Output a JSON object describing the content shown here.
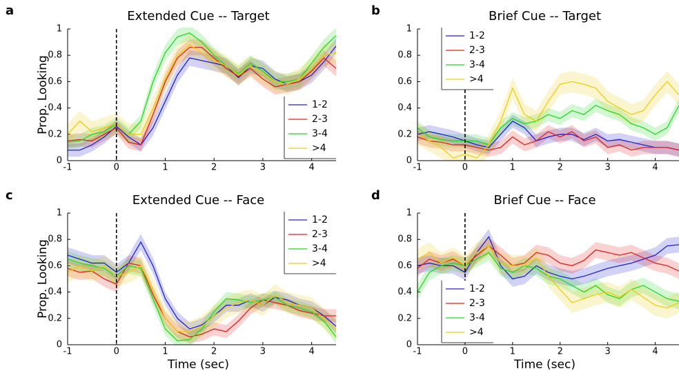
{
  "chart_data": [
    {
      "type": "line",
      "panel_label": "a",
      "title": "Extended Cue -- Target",
      "ylabel": "Prop. Looking",
      "legend": "lower right",
      "x": [
        -1,
        -0.75,
        -0.5,
        -0.25,
        0,
        0.25,
        0.5,
        0.75,
        1,
        1.25,
        1.5,
        1.75,
        2,
        2.25,
        2.5,
        2.75,
        3,
        3.25,
        3.5,
        3.75,
        4,
        4.25,
        4.5
      ],
      "xlim": [
        -1,
        4.5
      ],
      "xticks": [
        -1,
        0,
        1,
        2,
        3,
        4
      ],
      "ylim": [
        0,
        1
      ],
      "yticks": [
        0,
        0.2,
        0.4,
        0.6,
        0.8,
        1
      ],
      "series": [
        {
          "name": "1-2",
          "color": "#1f1fd6",
          "values": [
            0.08,
            0.08,
            0.12,
            0.18,
            0.26,
            0.18,
            0.12,
            0.25,
            0.45,
            0.65,
            0.78,
            0.76,
            0.74,
            0.72,
            0.63,
            0.72,
            0.7,
            0.62,
            0.58,
            0.6,
            0.65,
            0.75,
            0.87
          ],
          "error": [
            0.05,
            0.05,
            0.05,
            0.05,
            0.05,
            0.05,
            0.05,
            0.06,
            0.06,
            0.06,
            0.06,
            0.06,
            0.06,
            0.06,
            0.06,
            0.06,
            0.06,
            0.06,
            0.06,
            0.06,
            0.06,
            0.06,
            0.06
          ]
        },
        {
          "name": "2-3",
          "color": "#e0201a",
          "values": [
            0.15,
            0.16,
            0.15,
            0.2,
            0.25,
            0.14,
            0.12,
            0.35,
            0.6,
            0.78,
            0.86,
            0.86,
            0.78,
            0.7,
            0.64,
            0.7,
            0.62,
            0.56,
            0.58,
            0.6,
            0.68,
            0.78,
            0.7
          ],
          "error": [
            0.05,
            0.05,
            0.05,
            0.05,
            0.05,
            0.05,
            0.05,
            0.06,
            0.06,
            0.06,
            0.06,
            0.06,
            0.06,
            0.06,
            0.06,
            0.06,
            0.06,
            0.06,
            0.06,
            0.06,
            0.06,
            0.06,
            0.06
          ]
        },
        {
          "name": "3-4",
          "color": "#22d822",
          "values": [
            0.14,
            0.15,
            0.2,
            0.22,
            0.28,
            0.2,
            0.3,
            0.6,
            0.82,
            0.94,
            0.97,
            0.9,
            0.8,
            0.72,
            0.66,
            0.74,
            0.68,
            0.6,
            0.6,
            0.62,
            0.74,
            0.86,
            0.95
          ],
          "error": [
            0.05,
            0.05,
            0.05,
            0.05,
            0.05,
            0.05,
            0.05,
            0.06,
            0.06,
            0.06,
            0.06,
            0.06,
            0.06,
            0.06,
            0.06,
            0.06,
            0.06,
            0.06,
            0.06,
            0.06,
            0.06,
            0.06,
            0.06
          ]
        },
        {
          "name": ">4",
          "color": "#eccc10",
          "values": [
            0.2,
            0.3,
            0.22,
            0.25,
            0.28,
            0.2,
            0.2,
            0.4,
            0.62,
            0.8,
            0.88,
            0.82,
            0.76,
            0.72,
            0.65,
            0.72,
            0.66,
            0.6,
            0.58,
            0.62,
            0.7,
            0.8,
            0.82
          ],
          "error": [
            0.08,
            0.08,
            0.08,
            0.08,
            0.08,
            0.08,
            0.08,
            0.08,
            0.08,
            0.08,
            0.08,
            0.08,
            0.08,
            0.08,
            0.08,
            0.08,
            0.08,
            0.08,
            0.08,
            0.08,
            0.08,
            0.08,
            0.08
          ]
        }
      ]
    },
    {
      "type": "line",
      "panel_label": "b",
      "title": "Brief Cue -- Target",
      "legend": "upper left",
      "x": [
        -1,
        -0.75,
        -0.5,
        -0.25,
        0,
        0.25,
        0.5,
        0.75,
        1,
        1.25,
        1.5,
        1.75,
        2,
        2.25,
        2.5,
        2.75,
        3,
        3.25,
        3.5,
        3.75,
        4,
        4.25,
        4.5
      ],
      "xlim": [
        -1,
        4.5
      ],
      "xticks": [
        -1,
        0,
        1,
        2,
        3,
        4
      ],
      "ylim": [
        0,
        1
      ],
      "yticks": [
        0,
        0.2,
        0.4,
        0.6,
        0.8,
        1
      ],
      "series": [
        {
          "name": "1-2",
          "color": "#1f1fd6",
          "values": [
            0.2,
            0.22,
            0.2,
            0.18,
            0.15,
            0.12,
            0.1,
            0.2,
            0.3,
            0.25,
            0.15,
            0.18,
            0.2,
            0.2,
            0.16,
            0.2,
            0.15,
            0.16,
            0.14,
            0.12,
            0.1,
            0.1,
            0.08
          ],
          "error": [
            0.05,
            0.05,
            0.05,
            0.05,
            0.05,
            0.05,
            0.05,
            0.05,
            0.05,
            0.05,
            0.05,
            0.05,
            0.05,
            0.05,
            0.05,
            0.05,
            0.05,
            0.05,
            0.05,
            0.05,
            0.05,
            0.05,
            0.05
          ]
        },
        {
          "name": "2-3",
          "color": "#e0201a",
          "values": [
            0.18,
            0.15,
            0.14,
            0.12,
            0.12,
            0.1,
            0.08,
            0.1,
            0.18,
            0.12,
            0.15,
            0.22,
            0.18,
            0.22,
            0.15,
            0.18,
            0.1,
            0.12,
            0.08,
            0.1,
            0.1,
            0.1,
            0.08
          ],
          "error": [
            0.05,
            0.05,
            0.05,
            0.05,
            0.05,
            0.05,
            0.05,
            0.05,
            0.05,
            0.05,
            0.05,
            0.05,
            0.05,
            0.05,
            0.05,
            0.05,
            0.05,
            0.05,
            0.05,
            0.05,
            0.05,
            0.05,
            0.05
          ]
        },
        {
          "name": "3-4",
          "color": "#22d822",
          "values": [
            0.25,
            0.18,
            0.16,
            0.15,
            0.15,
            0.15,
            0.12,
            0.25,
            0.32,
            0.28,
            0.3,
            0.35,
            0.32,
            0.38,
            0.35,
            0.42,
            0.38,
            0.35,
            0.28,
            0.25,
            0.2,
            0.25,
            0.42
          ],
          "error": [
            0.05,
            0.05,
            0.05,
            0.05,
            0.05,
            0.05,
            0.05,
            0.05,
            0.05,
            0.05,
            0.05,
            0.05,
            0.05,
            0.05,
            0.05,
            0.05,
            0.05,
            0.05,
            0.05,
            0.05,
            0.05,
            0.05,
            0.05
          ]
        },
        {
          "name": ">4",
          "color": "#eccc10",
          "values": [
            0.2,
            0.15,
            0.1,
            0.02,
            0.05,
            0.02,
            0.12,
            0.3,
            0.55,
            0.35,
            0.3,
            0.45,
            0.58,
            0.6,
            0.58,
            0.55,
            0.45,
            0.4,
            0.35,
            0.38,
            0.5,
            0.6,
            0.5
          ],
          "error": [
            0.08,
            0.08,
            0.08,
            0.08,
            0.08,
            0.08,
            0.08,
            0.08,
            0.08,
            0.08,
            0.08,
            0.08,
            0.08,
            0.08,
            0.08,
            0.08,
            0.08,
            0.08,
            0.08,
            0.08,
            0.08,
            0.08,
            0.08
          ]
        }
      ]
    },
    {
      "type": "line",
      "panel_label": "c",
      "title": "Extended Cue -- Face",
      "ylabel": "Prop. Looking",
      "xlabel": "Time (sec)",
      "legend": "upper right",
      "x": [
        -1,
        -0.75,
        -0.5,
        -0.25,
        0,
        0.25,
        0.5,
        0.75,
        1,
        1.25,
        1.5,
        1.75,
        2,
        2.25,
        2.5,
        2.75,
        3,
        3.25,
        3.5,
        3.75,
        4,
        4.25,
        4.5
      ],
      "xlim": [
        -1,
        4.5
      ],
      "xticks": [
        -1,
        0,
        1,
        2,
        3,
        4
      ],
      "ylim": [
        0,
        1
      ],
      "yticks": [
        0,
        0.2,
        0.4,
        0.6,
        0.8,
        1
      ],
      "series": [
        {
          "name": "1-2",
          "color": "#1f1fd6",
          "values": [
            0.68,
            0.65,
            0.62,
            0.62,
            0.55,
            0.62,
            0.78,
            0.6,
            0.35,
            0.2,
            0.12,
            0.15,
            0.22,
            0.3,
            0.3,
            0.34,
            0.3,
            0.36,
            0.34,
            0.3,
            0.28,
            0.22,
            0.14
          ],
          "error": [
            0.06,
            0.06,
            0.06,
            0.06,
            0.06,
            0.06,
            0.06,
            0.06,
            0.05,
            0.05,
            0.05,
            0.05,
            0.05,
            0.05,
            0.05,
            0.05,
            0.05,
            0.05,
            0.05,
            0.05,
            0.05,
            0.05,
            0.05
          ]
        },
        {
          "name": "2-3",
          "color": "#e0201a",
          "values": [
            0.58,
            0.55,
            0.56,
            0.5,
            0.46,
            0.62,
            0.6,
            0.38,
            0.2,
            0.1,
            0.06,
            0.08,
            0.12,
            0.1,
            0.18,
            0.28,
            0.34,
            0.32,
            0.3,
            0.26,
            0.24,
            0.22,
            0.22
          ],
          "error": [
            0.06,
            0.06,
            0.06,
            0.06,
            0.06,
            0.06,
            0.06,
            0.06,
            0.05,
            0.05,
            0.05,
            0.05,
            0.05,
            0.05,
            0.05,
            0.05,
            0.05,
            0.05,
            0.05,
            0.05,
            0.05,
            0.05,
            0.05
          ]
        },
        {
          "name": "3-4",
          "color": "#22d822",
          "values": [
            0.65,
            0.62,
            0.6,
            0.58,
            0.52,
            0.6,
            0.58,
            0.35,
            0.12,
            0.03,
            0.04,
            0.12,
            0.25,
            0.35,
            0.34,
            0.32,
            0.34,
            0.36,
            0.3,
            0.28,
            0.25,
            0.18,
            0.06
          ],
          "error": [
            0.06,
            0.06,
            0.06,
            0.06,
            0.06,
            0.06,
            0.06,
            0.06,
            0.05,
            0.05,
            0.05,
            0.05,
            0.05,
            0.05,
            0.05,
            0.05,
            0.05,
            0.05,
            0.05,
            0.05,
            0.05,
            0.05,
            0.05
          ]
        },
        {
          "name": ">4",
          "color": "#eccc10",
          "values": [
            0.55,
            0.6,
            0.56,
            0.6,
            0.52,
            0.55,
            0.6,
            0.42,
            0.2,
            0.1,
            0.1,
            0.14,
            0.22,
            0.28,
            0.32,
            0.34,
            0.3,
            0.38,
            0.32,
            0.3,
            0.28,
            0.2,
            0.12
          ],
          "error": [
            0.08,
            0.08,
            0.08,
            0.08,
            0.08,
            0.08,
            0.08,
            0.08,
            0.08,
            0.08,
            0.08,
            0.08,
            0.08,
            0.08,
            0.08,
            0.08,
            0.08,
            0.08,
            0.08,
            0.08,
            0.08,
            0.08,
            0.08
          ]
        }
      ]
    },
    {
      "type": "line",
      "panel_label": "d",
      "title": "Brief Cue -- Face",
      "xlabel": "Time (sec)",
      "legend": "lower left",
      "x": [
        -1,
        -0.75,
        -0.5,
        -0.25,
        0,
        0.25,
        0.5,
        0.75,
        1,
        1.25,
        1.5,
        1.75,
        2,
        2.25,
        2.5,
        2.75,
        3,
        3.25,
        3.5,
        3.75,
        4,
        4.25,
        4.5
      ],
      "xlim": [
        -1,
        4.5
      ],
      "xticks": [
        -1,
        0,
        1,
        2,
        3,
        4
      ],
      "ylim": [
        0,
        1
      ],
      "yticks": [
        0,
        0.2,
        0.4,
        0.6,
        0.8,
        1
      ],
      "series": [
        {
          "name": "1-2",
          "color": "#1f1fd6",
          "values": [
            0.6,
            0.62,
            0.6,
            0.6,
            0.55,
            0.7,
            0.82,
            0.6,
            0.5,
            0.52,
            0.6,
            0.55,
            0.52,
            0.5,
            0.52,
            0.55,
            0.58,
            0.6,
            0.62,
            0.65,
            0.68,
            0.75,
            0.76
          ],
          "error": [
            0.06,
            0.06,
            0.06,
            0.06,
            0.06,
            0.06,
            0.06,
            0.06,
            0.06,
            0.06,
            0.06,
            0.06,
            0.06,
            0.06,
            0.06,
            0.06,
            0.06,
            0.06,
            0.06,
            0.06,
            0.06,
            0.06,
            0.06
          ]
        },
        {
          "name": "2-3",
          "color": "#e0201a",
          "values": [
            0.58,
            0.65,
            0.62,
            0.65,
            0.6,
            0.68,
            0.75,
            0.68,
            0.6,
            0.62,
            0.7,
            0.68,
            0.62,
            0.6,
            0.64,
            0.72,
            0.7,
            0.68,
            0.7,
            0.66,
            0.62,
            0.6,
            0.56
          ],
          "error": [
            0.06,
            0.06,
            0.06,
            0.06,
            0.06,
            0.06,
            0.06,
            0.06,
            0.06,
            0.06,
            0.06,
            0.06,
            0.06,
            0.06,
            0.06,
            0.06,
            0.06,
            0.06,
            0.06,
            0.06,
            0.06,
            0.06,
            0.06
          ]
        },
        {
          "name": "3-4",
          "color": "#22d822",
          "values": [
            0.4,
            0.55,
            0.6,
            0.62,
            0.6,
            0.65,
            0.7,
            0.58,
            0.55,
            0.6,
            0.58,
            0.52,
            0.5,
            0.45,
            0.4,
            0.45,
            0.38,
            0.35,
            0.42,
            0.45,
            0.4,
            0.35,
            0.33
          ],
          "error": [
            0.06,
            0.06,
            0.06,
            0.06,
            0.06,
            0.06,
            0.06,
            0.06,
            0.06,
            0.06,
            0.06,
            0.06,
            0.06,
            0.06,
            0.06,
            0.06,
            0.06,
            0.06,
            0.06,
            0.06,
            0.06,
            0.06,
            0.06
          ]
        },
        {
          "name": ">4",
          "color": "#eccc10",
          "values": [
            0.65,
            0.7,
            0.62,
            0.66,
            0.6,
            0.7,
            0.75,
            0.62,
            0.6,
            0.6,
            0.66,
            0.52,
            0.42,
            0.32,
            0.35,
            0.38,
            0.4,
            0.36,
            0.42,
            0.36,
            0.3,
            0.28,
            0.32
          ],
          "error": [
            0.08,
            0.08,
            0.08,
            0.08,
            0.08,
            0.08,
            0.08,
            0.08,
            0.08,
            0.08,
            0.08,
            0.08,
            0.08,
            0.08,
            0.08,
            0.08,
            0.08,
            0.08,
            0.08,
            0.08,
            0.08,
            0.08,
            0.08
          ]
        }
      ]
    }
  ]
}
